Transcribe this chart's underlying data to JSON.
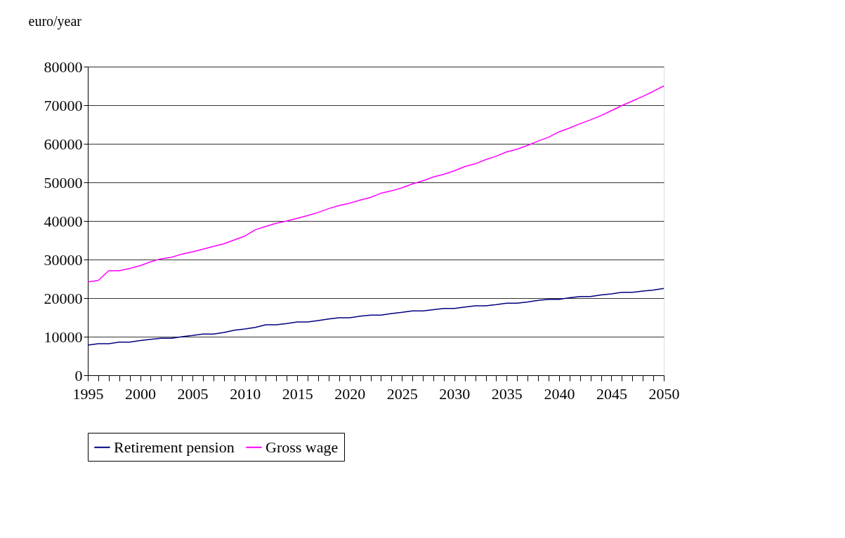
{
  "chart_data": {
    "type": "line",
    "ylabel": "euro/year",
    "x": [
      1995,
      1996,
      1997,
      1998,
      1999,
      2000,
      2001,
      2002,
      2003,
      2004,
      2005,
      2006,
      2007,
      2008,
      2009,
      2010,
      2011,
      2012,
      2013,
      2014,
      2015,
      2016,
      2017,
      2018,
      2019,
      2020,
      2021,
      2022,
      2023,
      2024,
      2025,
      2026,
      2027,
      2028,
      2029,
      2030,
      2031,
      2032,
      2033,
      2034,
      2035,
      2036,
      2037,
      2038,
      2039,
      2040,
      2041,
      2042,
      2043,
      2044,
      2045,
      2046,
      2047,
      2048,
      2049,
      2050
    ],
    "series": [
      {
        "name": "Retirement pension",
        "color": "#000080",
        "values": [
          7800,
          8200,
          8200,
          8600,
          8600,
          9000,
          9300,
          9600,
          9600,
          10000,
          10300,
          10700,
          10700,
          11100,
          11700,
          12000,
          12400,
          13100,
          13100,
          13400,
          13800,
          13800,
          14200,
          14600,
          14900,
          14900,
          15300,
          15600,
          15600,
          16000,
          16300,
          16700,
          16700,
          17000,
          17300,
          17300,
          17700,
          18000,
          18000,
          18300,
          18700,
          18700,
          19000,
          19400,
          19700,
          19700,
          20100,
          20400,
          20400,
          20800,
          21100,
          21500,
          21500,
          21800,
          22100,
          22500
        ]
      },
      {
        "name": "Gross wage",
        "color": "#ff00ff",
        "values": [
          24200,
          24600,
          27100,
          27100,
          27700,
          28400,
          29400,
          30200,
          30600,
          31400,
          32000,
          32700,
          33400,
          34100,
          35100,
          36100,
          37700,
          38600,
          39400,
          40000,
          40700,
          41400,
          42200,
          43200,
          44000,
          44600,
          45400,
          46100,
          47200,
          47800,
          48600,
          49600,
          50400,
          51400,
          52100,
          53000,
          54100,
          54800,
          55900,
          56800,
          57900,
          58600,
          59600,
          60700,
          61700,
          63100,
          64100,
          65200,
          66200,
          67300,
          68600,
          69900,
          71100,
          72300,
          73600,
          75000
        ]
      }
    ],
    "xlim": [
      1995,
      2050
    ],
    "xticks": [
      1995,
      {
        "value": 1996,
        "label": null
      },
      {
        "value": 1997,
        "label": null
      },
      {
        "value": 1998,
        "label": null
      },
      {
        "value": 1999,
        "label": null
      },
      2000,
      {
        "value": 2001,
        "label": null
      },
      {
        "value": 2002,
        "label": null
      },
      {
        "value": 2003,
        "label": null
      },
      {
        "value": 2004,
        "label": null
      },
      2005,
      {
        "value": 2006,
        "label": null
      },
      {
        "value": 2007,
        "label": null
      },
      {
        "value": 2008,
        "label": null
      },
      {
        "value": 2009,
        "label": null
      },
      2010,
      {
        "value": 2011,
        "label": null
      },
      {
        "value": 2012,
        "label": null
      },
      {
        "value": 2013,
        "label": null
      },
      {
        "value": 2014,
        "label": null
      },
      2015,
      {
        "value": 2016,
        "label": null
      },
      {
        "value": 2017,
        "label": null
      },
      {
        "value": 2018,
        "label": null
      },
      {
        "value": 2019,
        "label": null
      },
      2020,
      {
        "value": 2021,
        "label": null
      },
      {
        "value": 2022,
        "label": null
      },
      {
        "value": 2023,
        "label": null
      },
      {
        "value": 2024,
        "label": null
      },
      2025,
      {
        "value": 2026,
        "label": null
      },
      {
        "value": 2027,
        "label": null
      },
      {
        "value": 2028,
        "label": null
      },
      {
        "value": 2029,
        "label": null
      },
      2030,
      {
        "value": 2031,
        "label": null
      },
      {
        "value": 2032,
        "label": null
      },
      {
        "value": 2033,
        "label": null
      },
      {
        "value": 2034,
        "label": null
      },
      2035,
      {
        "value": 2036,
        "label": null
      },
      {
        "value": 2037,
        "label": null
      },
      {
        "value": 2038,
        "label": null
      },
      {
        "value": 2039,
        "label": null
      },
      2040,
      {
        "value": 2041,
        "label": null
      },
      {
        "value": 2042,
        "label": null
      },
      {
        "value": 2043,
        "label": null
      },
      {
        "value": 2044,
        "label": null
      },
      2045,
      {
        "value": 2046,
        "label": null
      },
      {
        "value": 2047,
        "label": null
      },
      {
        "value": 2048,
        "label": null
      },
      {
        "value": 2049,
        "label": null
      },
      2050
    ],
    "ylim": [
      0,
      80000
    ],
    "yticks": [
      0,
      10000,
      20000,
      30000,
      40000,
      50000,
      60000,
      70000,
      80000
    ],
    "grid": "y",
    "legend": "bottom",
    "marker": "none",
    "line_style": "solid"
  }
}
